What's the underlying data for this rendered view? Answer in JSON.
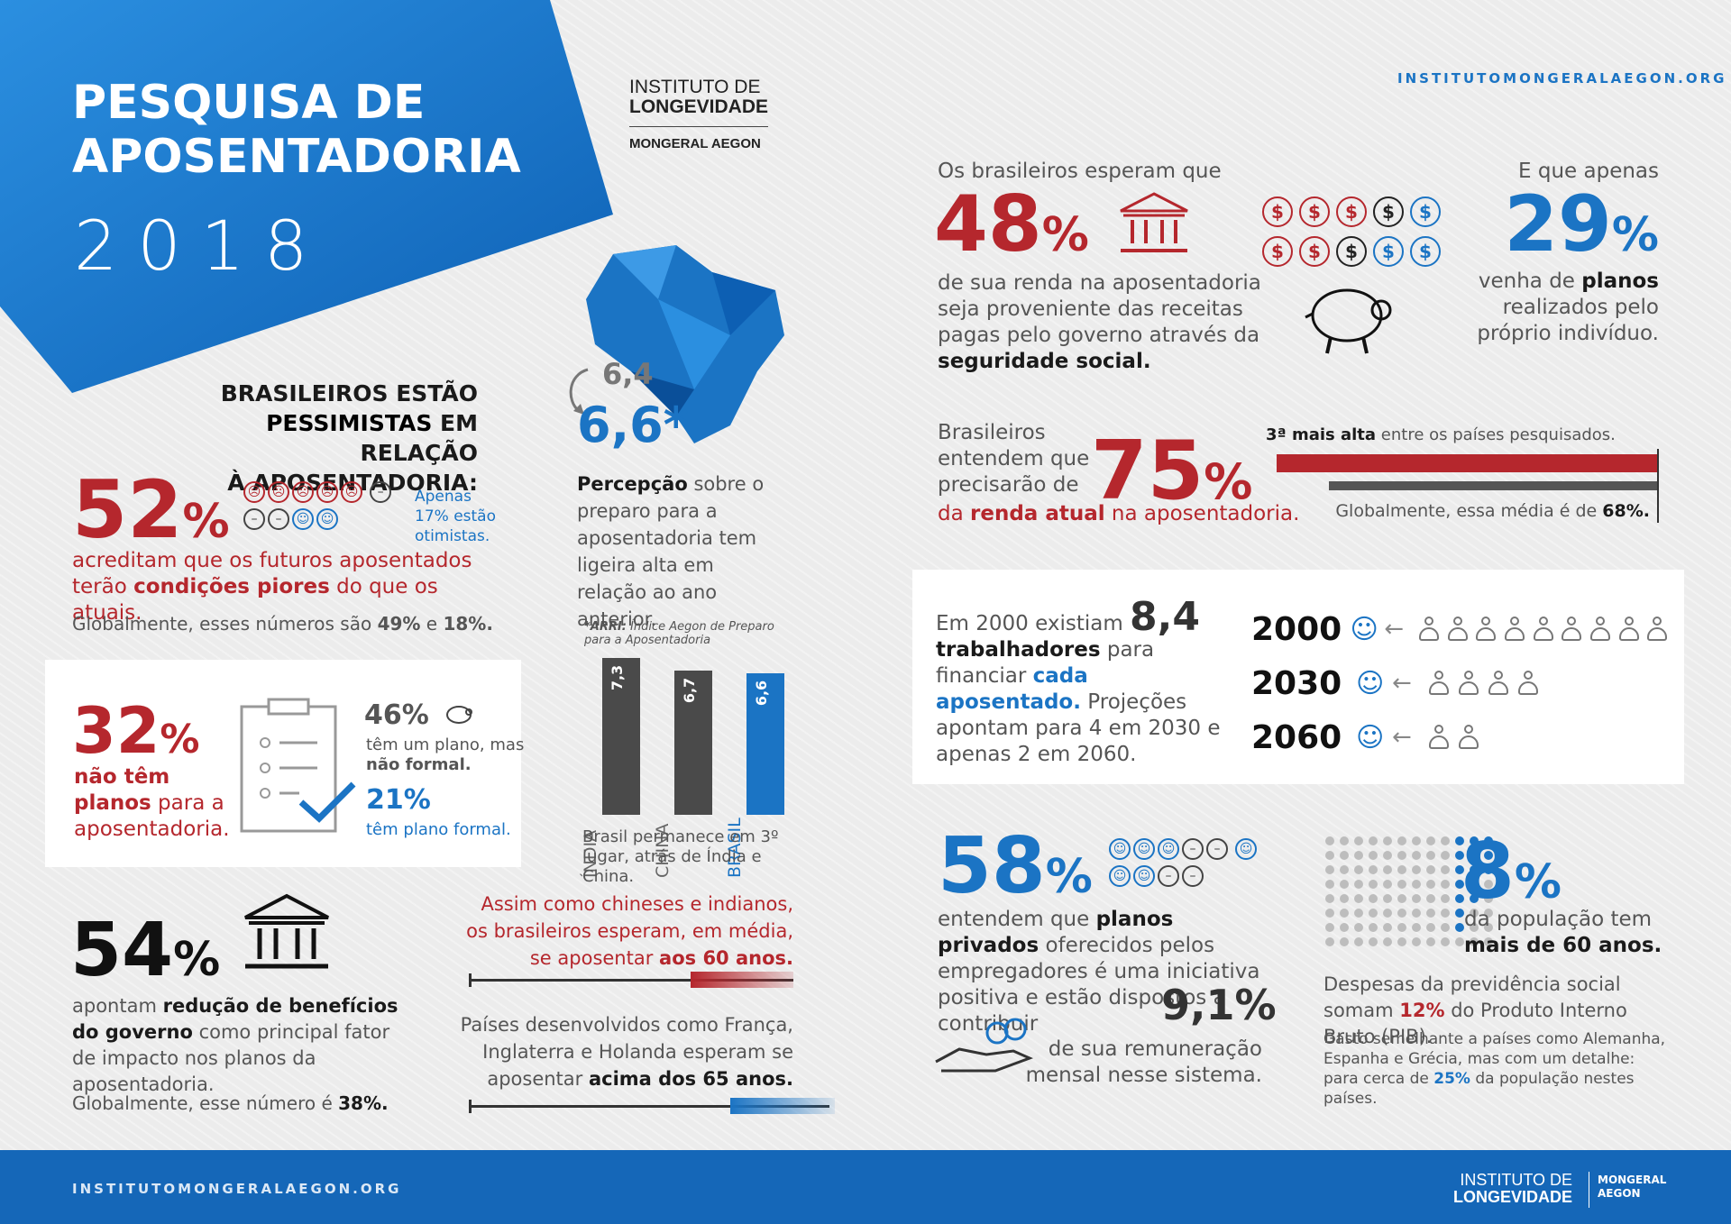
{
  "colors": {
    "red": "#b5272d",
    "blue": "#1b74c4",
    "dark": "#1a1a1a"
  },
  "header": {
    "title_line1": "PESQUISA DE",
    "title_line2": "APOSENTADORIA",
    "year": "2018",
    "logo_line1": "INSTITUTO DE",
    "logo_line2": "LONGEVIDADE",
    "logo_line3": "MONGERAL AEGON",
    "url": "INSTITUTOMONGERALAEGON.ORG"
  },
  "pessimism": {
    "heading_1": "BRASILEIROS ESTÃO",
    "heading_2a": "PESSIMISTAS",
    "heading_2b": " EM RELAÇÃO",
    "heading_3": "À APOSENTADORIA:",
    "percent": "52",
    "pct_sign": "%",
    "note": "Apenas 17% estão otimistas.",
    "text_a": "acreditam que os futuros aposentados terão ",
    "text_b": "condições piores",
    "text_c": " do que os atuais.",
    "global_a": "Globalmente, esses números são ",
    "global_b": "49%",
    "global_c": " e ",
    "global_d": "18%."
  },
  "plans": {
    "percent": "32",
    "pct_sign": "%",
    "text_a": "não têm",
    "text_b": "planos",
    "text_c": " para a aposentadoria.",
    "informal_pct": "46%",
    "informal_text_a": "têm um plano, mas ",
    "informal_text_b": "não formal.",
    "formal_pct": "21%",
    "formal_text": "têm plano formal."
  },
  "benefits": {
    "percent": "54",
    "pct_sign": "%",
    "text_a": "apontam ",
    "text_b": "redução de benefícios do governo",
    "text_c": " como principal fator de impacto nos planos da aposentadoria.",
    "global_a": "Globalmente, esse número é ",
    "global_b": "38%."
  },
  "perception": {
    "old": "6,4",
    "new": "6,6*",
    "text_a": "Percepção",
    "text_b": " sobre o preparo para a aposentadoria tem ligeira alta em relação ao ano anterior.",
    "footnote_a": "*ARRI:",
    "footnote_b": " Índice Aegon de Preparo para a Aposentadoria",
    "caption": "Brasil permanece em 3º lugar, atrás de Índia e China."
  },
  "chart_data": {
    "type": "bar",
    "categories": [
      "ÍNDIA",
      "CHINA",
      "BRASIL"
    ],
    "values": [
      7.3,
      6.7,
      6.6
    ],
    "value_labels": [
      "7,3",
      "6,7",
      "6,6"
    ],
    "colors": [
      "#4a4a4a",
      "#4a4a4a",
      "#1b74c4"
    ]
  },
  "age": {
    "text_a": "Assim como chineses e indianos, os brasileiros esperam, em média, se aposentar ",
    "text_b": "aos 60 anos.",
    "text2_a": "Países desenvolvidos como França, Inglaterra e Holanda esperam se aposentar ",
    "text2_b": "acima dos 65 anos."
  },
  "income": {
    "intro": "Os brasileiros esperam que",
    "percent": "48",
    "pct_sign": "%",
    "text_a": "de sua renda na aposentadoria seja proveniente das receitas pagas pelo governo através da ",
    "text_b": "seguridade social.",
    "coins": [
      "$",
      "$",
      "$",
      "$",
      "$",
      "$",
      "$",
      "$",
      "$",
      "$"
    ],
    "right_intro": "E que apenas",
    "right_percent": "29",
    "right_pct_sign": "%",
    "right_text_a": "venha de ",
    "right_text_b": "planos",
    "right_text_c": " realizados pelo próprio indivíduo."
  },
  "replacement": {
    "text_a": "Brasileiros entendem que precisarão de",
    "percent": "75",
    "pct_sign": "%",
    "text_b": "da ",
    "text_c": "renda atual",
    "text_d": " na aposentadoria.",
    "rank_a": "3ª mais alta",
    "rank_b": " entre os países pesquisados.",
    "global_a": "Globalmente, essa média é de ",
    "global_b": "68%.",
    "brasil_value": 75,
    "global_value": 68
  },
  "workers": {
    "text_a": "Em 2000 existiam ",
    "number": "8,4",
    "text_b": "trabalhadores",
    "text_c": " para financiar ",
    "text_d": "cada aposentado.",
    "text_e": " Projeções apontam para 4 em 2030 e apenas 2 em 2060.",
    "rows": [
      {
        "year": "2000",
        "count": 9
      },
      {
        "year": "2030",
        "count": 4
      },
      {
        "year": "2060",
        "count": 2
      }
    ]
  },
  "private": {
    "percent": "58",
    "pct_sign": "%",
    "text_a": "entendem que ",
    "text_b": "planos privados",
    "text_c": " oferecidos pelos empregadores é uma iniciativa positiva e estão dispostos a contribuir",
    "contrib": "9,1%",
    "text_d": "de sua remuneração mensal nesse sistema."
  },
  "population": {
    "percent": "8",
    "pct_sign": "%",
    "text_a": "da população tem",
    "text_b": "mais de 60 anos.",
    "spend_a": "Despesas da previdência social somam ",
    "spend_b": "12%",
    "spend_c": " do Produto Interno Bruto (PIB).",
    "note_a": "Gasto semelhante a países como Alemanha, Espanha e Grécia, mas com um detalhe: para cerca de ",
    "note_b": "25%",
    "note_c": " da população nestes países."
  },
  "footer": {
    "url": "INSTITUTOMONGERALAEGON.ORG",
    "logo_line1": "INSTITUTO DE",
    "logo_line2": "LONGEVIDADE",
    "logo_right1": "MONGERAL",
    "logo_right2": "AEGON"
  }
}
